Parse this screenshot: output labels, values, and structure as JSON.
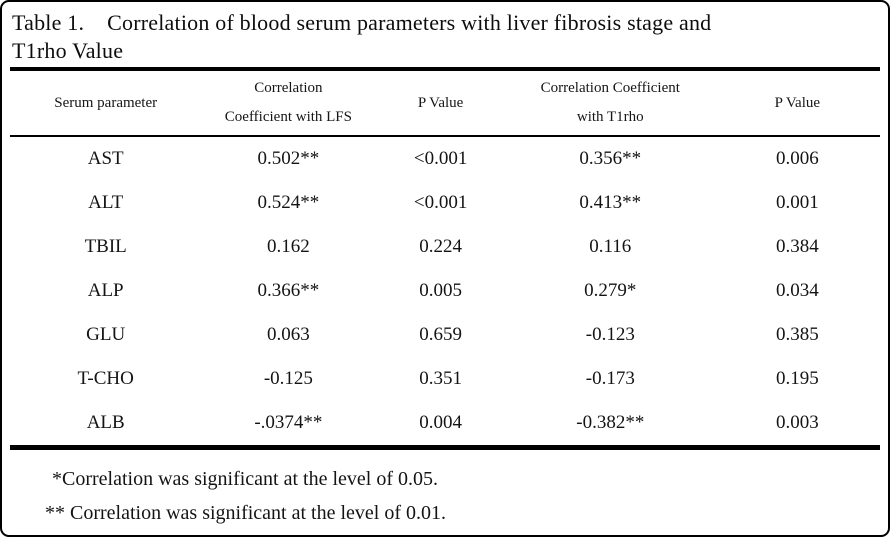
{
  "title": {
    "number": "Table 1.",
    "line1_rest": "Correlation of blood serum parameters with liver fibrosis stage and",
    "line2": "T1rho Value"
  },
  "table": {
    "headers": [
      {
        "line1": "Serum parameter",
        "line2": ""
      },
      {
        "line1": "Correlation",
        "line2": "Coefficient with LFS"
      },
      {
        "line1": "P Value",
        "line2": ""
      },
      {
        "line1": "Correlation Coefficient",
        "line2": "with T1rho"
      },
      {
        "line1": "P Value",
        "line2": ""
      }
    ],
    "rows": [
      [
        "AST",
        "0.502**",
        "<0.001",
        "0.356**",
        "0.006"
      ],
      [
        "ALT",
        "0.524**",
        "<0.001",
        "0.413**",
        "0.001"
      ],
      [
        "TBIL",
        "0.162",
        "0.224",
        "0.116",
        "0.384"
      ],
      [
        "ALP",
        "0.366**",
        "0.005",
        "0.279*",
        "0.034"
      ],
      [
        "GLU",
        "0.063",
        "0.659",
        "-0.123",
        "0.385"
      ],
      [
        "T-CHO",
        "-0.125",
        "0.351",
        "-0.173",
        "0.195"
      ],
      [
        "ALB",
        "-.0374**",
        "0.004",
        "-0.382**",
        "0.003"
      ]
    ]
  },
  "footnotes": [
    "*Correlation was significant at the level of 0.05.",
    "** Correlation was significant at the level of 0.01."
  ]
}
